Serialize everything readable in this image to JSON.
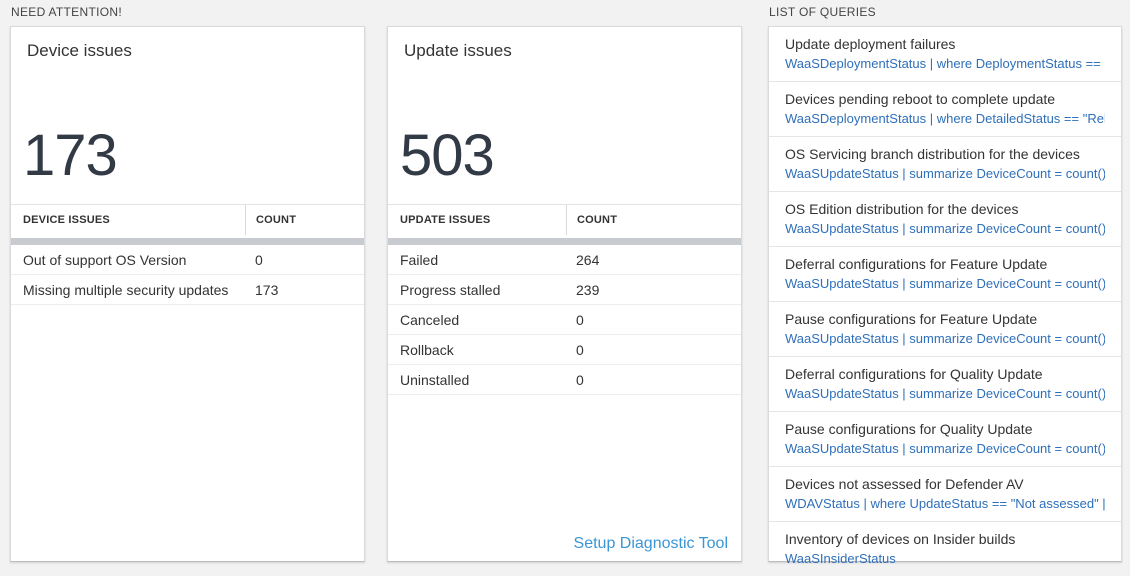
{
  "colors": {
    "page_background": "#f2f2f2",
    "card_border": "#dadada",
    "big_number_color": "#323a45",
    "query_blue": "#2e6fba",
    "footer_link_blue": "#3a96d5",
    "scrollbar_gray": "#c8ccd1"
  },
  "sections": {
    "need_attention": {
      "label": "NEED ATTENTION!"
    },
    "list_of_queries": {
      "label": "LIST OF QUERIES"
    }
  },
  "device_card": {
    "title": "Device issues",
    "big_number": "173",
    "table": {
      "headers": [
        "DEVICE ISSUES",
        "COUNT"
      ],
      "rows": [
        {
          "label": "Out of support OS Version",
          "count": "0"
        },
        {
          "label": "Missing multiple security updates",
          "count": "173"
        }
      ]
    }
  },
  "update_card": {
    "title": "Update issues",
    "big_number": "503",
    "table": {
      "headers": [
        "UPDATE ISSUES",
        "COUNT"
      ],
      "rows": [
        {
          "label": "Failed",
          "count": "264"
        },
        {
          "label": "Progress stalled",
          "count": "239"
        },
        {
          "label": "Canceled",
          "count": "0"
        },
        {
          "label": "Rollback",
          "count": "0"
        },
        {
          "label": "Uninstalled",
          "count": "0"
        }
      ]
    },
    "footer_link": "Setup Diagnostic Tool"
  },
  "queries": {
    "items": [
      {
        "title": "Update deployment failures",
        "query": "WaaSDeploymentStatus | where DeploymentStatus == \"Failed\" |..."
      },
      {
        "title": "Devices pending reboot to complete update",
        "query": "WaaSDeploymentStatus | where DetailedStatus == \"Reboot pend..."
      },
      {
        "title": "OS Servicing branch distribution for the devices",
        "query": "WaaSUpdateStatus | summarize DeviceCount = count() by OSSer..."
      },
      {
        "title": "OS Edition distribution for the devices",
        "query": "WaaSUpdateStatus | summarize DeviceCount = count() by OSEdit..."
      },
      {
        "title": "Deferral configurations for Feature Update",
        "query": "WaaSUpdateStatus | summarize DeviceCount = count() by Featur..."
      },
      {
        "title": "Pause configurations for Feature Update",
        "query": "WaaSUpdateStatus | summarize DeviceCount = count() by Featur..."
      },
      {
        "title": "Deferral configurations for Quality Update",
        "query": "WaaSUpdateStatus | summarize DeviceCount = count() by Qualit..."
      },
      {
        "title": "Pause configurations for Quality Update",
        "query": "WaaSUpdateStatus | summarize DeviceCount = count() by Qualit..."
      },
      {
        "title": "Devices not assessed for Defender AV",
        "query": "WDAVStatus | where UpdateStatus == \"Not assessed\" | render ta..."
      },
      {
        "title": "Inventory of devices on Insider builds",
        "query": "WaaSInsiderStatus"
      }
    ]
  }
}
